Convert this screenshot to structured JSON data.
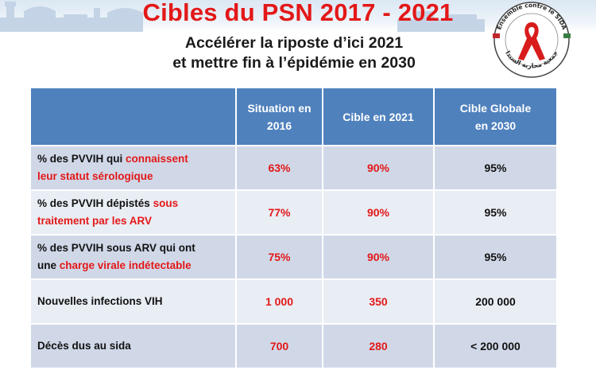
{
  "title": "Cibles du PSN 2017 - 2021",
  "subtitle_line1": "Accélérer la riposte d’ici 2021",
  "subtitle_line2": "et mettre fin à l’épidémie en 2030",
  "logo": {
    "icon": "red-ribbon-icon",
    "arc_text_fr": "Ensemble contre le SIDA",
    "arc_text_ar": "جمعية محاربة السيدا"
  },
  "table": {
    "headers": [
      "",
      "Situation en 2016",
      "Cible en 2021",
      "Cible Globale en 2030"
    ],
    "header_lines": [
      [],
      [
        "Situation en",
        "2016"
      ],
      [
        "Cible en 2021"
      ],
      [
        "Cible Globale",
        "en 2030"
      ]
    ],
    "rows": [
      {
        "line1_pre": "% des PVVIH qui ",
        "line1_hl": "connaissent",
        "line2_pre": "",
        "line2_hl": "leur statut sérologique",
        "line2_post": "",
        "v2016": "63%",
        "v2021": "90%",
        "v2030": "95%"
      },
      {
        "line1_pre": "% des PVVIH dépistés ",
        "line1_hl": "sous",
        "line2_pre": "",
        "line2_hl": "traitement par les ARV",
        "line2_post": "",
        "v2016": "77%",
        "v2021": "90%",
        "v2030": "95%"
      },
      {
        "line1_pre": "% des PVVIH sous ARV qui ont",
        "line1_hl": "",
        "line2_pre": "une ",
        "line2_hl": "charge virale indétectable",
        "line2_post": "",
        "v2016": "75%",
        "v2021": "90%",
        "v2030": "95%"
      },
      {
        "label": "Nouvelles infections VIH",
        "v2016": "1 000",
        "v2021": "350",
        "v2030": "200 000"
      },
      {
        "label": "Décès dus au sida",
        "v2016": "700",
        "v2021": "280",
        "v2030": "< 200 000"
      }
    ]
  },
  "colors": {
    "title_red": "#e31818",
    "header_blue": "#4f81bd",
    "row_odd": "#d0d8e8",
    "row_even": "#e9edf4"
  }
}
